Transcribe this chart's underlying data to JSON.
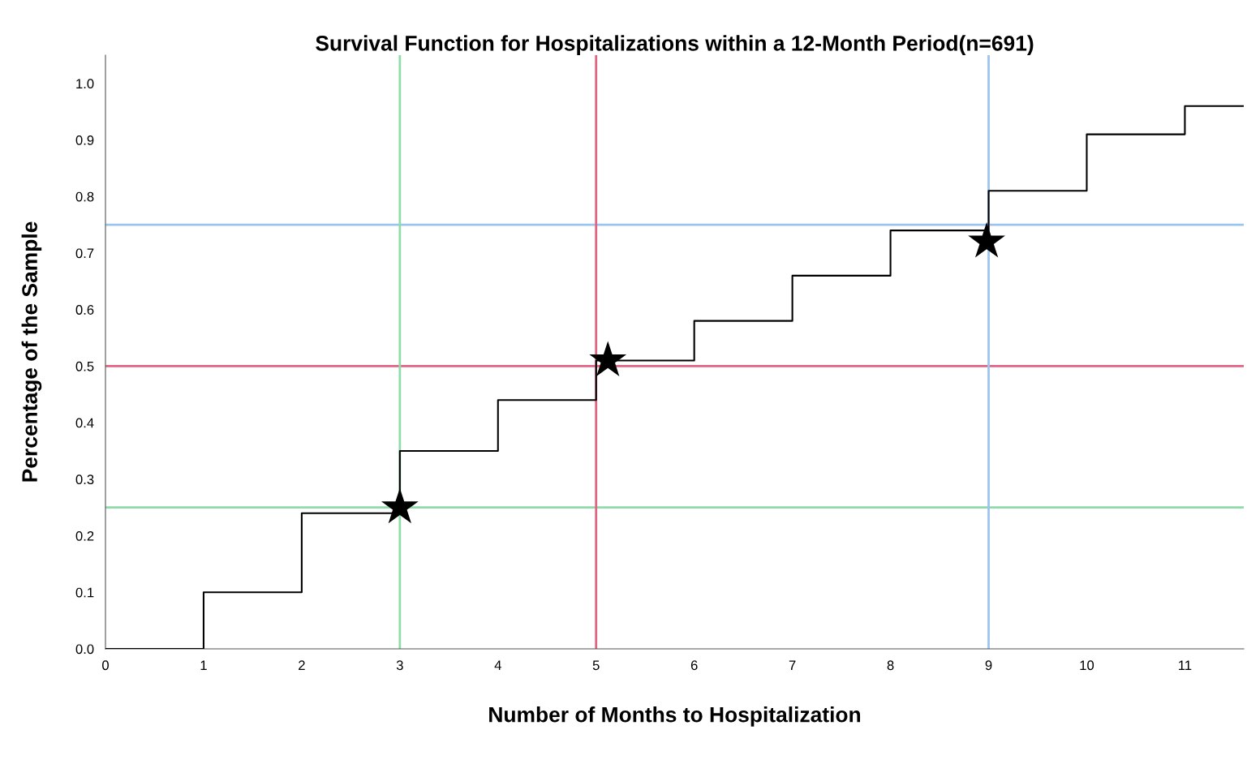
{
  "chart_data": {
    "type": "step",
    "title": "Survival Function for Hospitalizations within a 12-Month Period(n=691)",
    "xlabel": "Number of Months to Hospitalization",
    "ylabel": "Percentage of the Sample",
    "series": [
      {
        "color": "#000000",
        "x": [
          0,
          1,
          2,
          3,
          4,
          5,
          6,
          7,
          8,
          9,
          10,
          11,
          11.6
        ],
        "values": [
          0.0,
          0.1,
          0.24,
          0.35,
          0.44,
          0.51,
          0.58,
          0.66,
          0.74,
          0.81,
          0.91,
          0.96,
          0.96
        ]
      },
      {
        "type": "scatter",
        "color": "#000000",
        "marker": "star",
        "x": [
          3.0,
          5.12,
          8.98
        ],
        "values": [
          0.25,
          0.51,
          0.72
        ]
      }
    ],
    "ref_lines": [
      {
        "axis": "y",
        "value": 0.25,
        "color": "#8fdcaa"
      },
      {
        "axis": "y",
        "value": 0.5,
        "color": "#e06482"
      },
      {
        "axis": "y",
        "value": 0.75,
        "color": "#9cc4f0"
      },
      {
        "axis": "x",
        "value": 3,
        "color": "#8fdcaa"
      },
      {
        "axis": "x",
        "value": 5,
        "color": "#e06482"
      },
      {
        "axis": "x",
        "value": 9,
        "color": "#9cc4f0"
      }
    ],
    "xlim": [
      0,
      11.6
    ],
    "xticks": [
      0,
      1,
      2,
      3,
      4,
      5,
      6,
      7,
      8,
      9,
      10,
      11
    ],
    "ylim": [
      0,
      1.05
    ],
    "yticks": [
      {
        "value": 0,
        "label": "0.0"
      },
      0.1,
      0.2,
      0.3,
      0.4,
      0.5,
      0.6,
      0.7,
      0.8,
      0.9,
      {
        "value": 1,
        "label": "1.0"
      }
    ],
    "grid": false,
    "legend": false
  }
}
